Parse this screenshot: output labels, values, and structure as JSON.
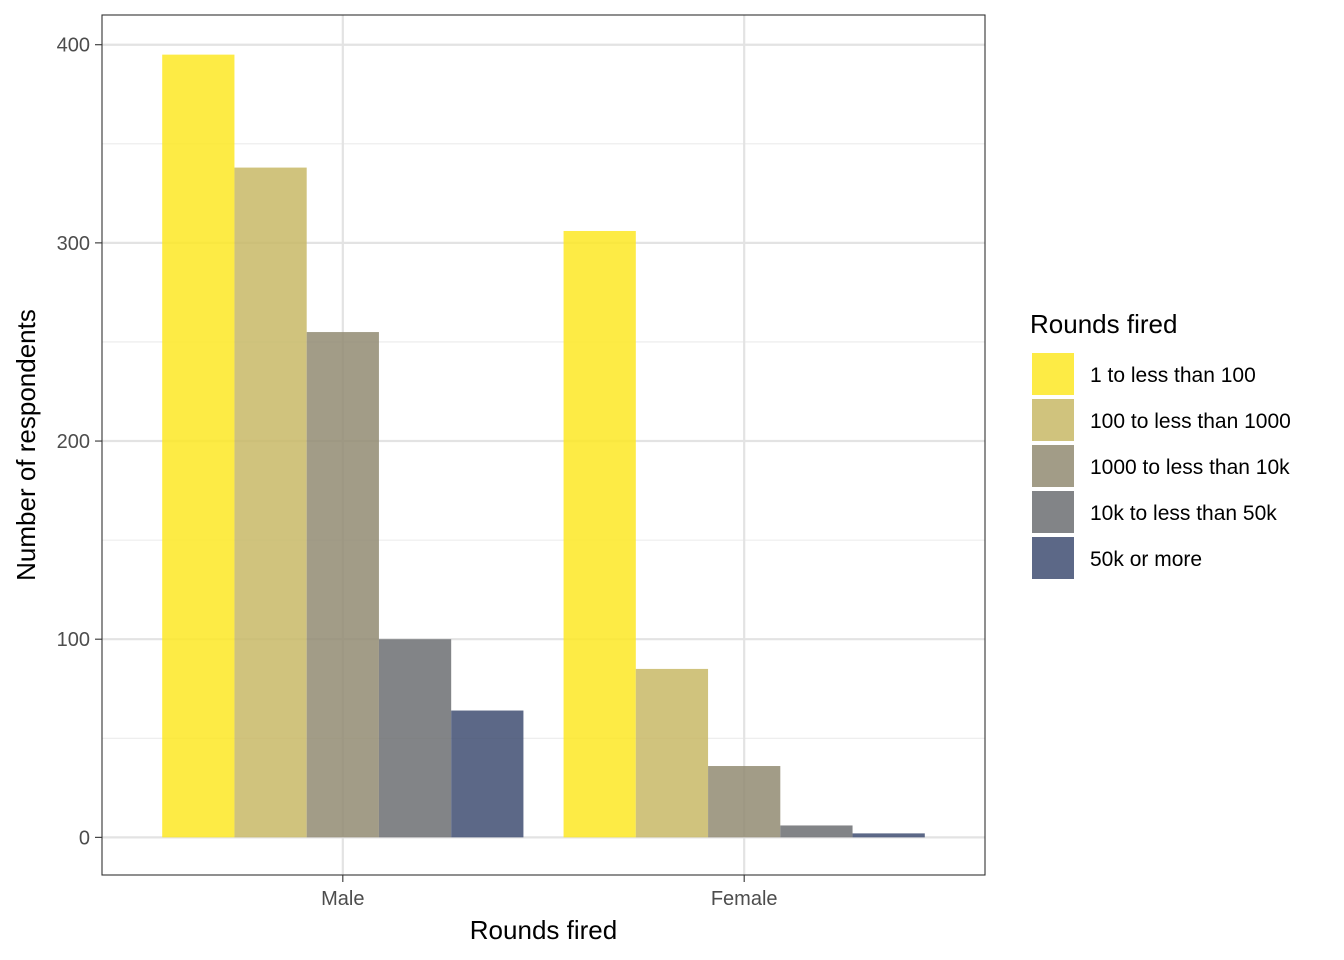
{
  "chart_data": {
    "type": "bar",
    "xlabel": "Rounds fired",
    "ylabel": "Number of respondents",
    "categories": [
      "Male",
      "Female"
    ],
    "ylim": [
      -19,
      415
    ],
    "yticks": [
      0,
      100,
      200,
      300,
      400
    ],
    "ytick_labels": [
      "0",
      "100",
      "200",
      "300",
      "400"
    ],
    "grid": true,
    "legend": {
      "title": "Rounds fired",
      "placement": "right"
    },
    "series": [
      {
        "name": "1 to less than 100",
        "color": "#FDE725",
        "values": [
          395,
          306
        ]
      },
      {
        "name": "100 to less than 1000",
        "color": "#C8B866",
        "values": [
          338,
          85
        ]
      },
      {
        "name": "1000 to less than 10k",
        "color": "#928B72",
        "values": [
          255,
          36
        ]
      },
      {
        "name": "10k to less than 50k",
        "color": "#6C6E72",
        "values": [
          100,
          6
        ]
      },
      {
        "name": "50k or more",
        "color": "#3F4E72",
        "values": [
          64,
          2
        ]
      }
    ]
  }
}
